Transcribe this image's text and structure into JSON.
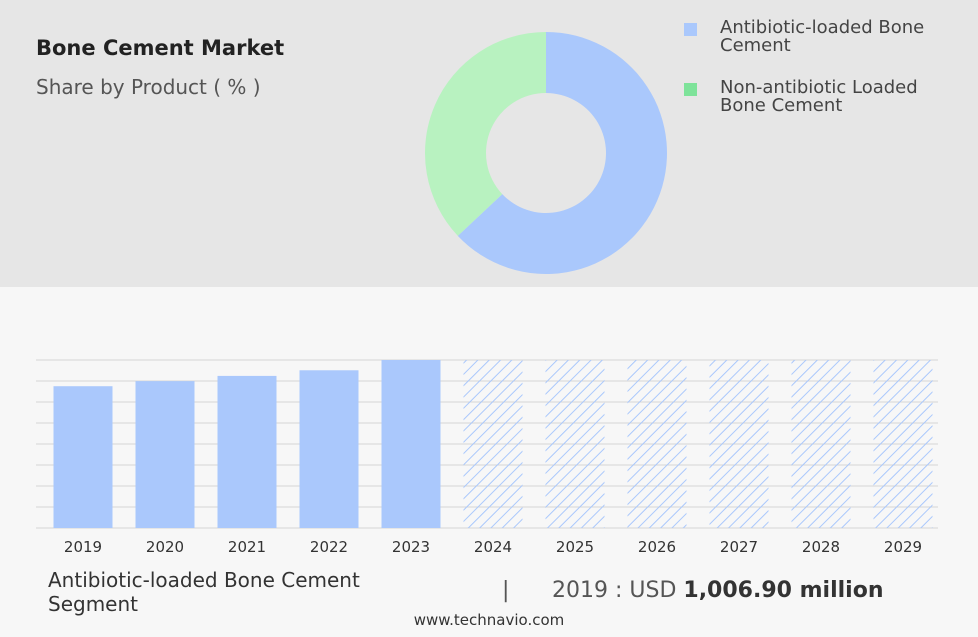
{
  "title": "Bone Cement Market",
  "subtitle": "Share by Product ( % )",
  "legend": {
    "items": [
      {
        "label": "Antibiotic-loaded Bone Cement",
        "color": "#aac8fc"
      },
      {
        "label": "Non-antibiotic Loaded Bone Cement",
        "color": "#7ee39a"
      }
    ]
  },
  "segment_label": "Antibiotic-loaded Bone Cement Segment",
  "separator": "|",
  "value_prefix": "2019 : USD ",
  "value_amount": "1,006.90 million",
  "footer": "www.technavio.com",
  "colors": {
    "donut_primary": "#aac8fc",
    "donut_secondary": "#b8f2c0",
    "bar": "#aac8fc",
    "hatch": "#aac8fc",
    "top_bg": "#e6e6e6",
    "bottom_bg": "#f7f7f7"
  },
  "chart_data": [
    {
      "type": "pie",
      "variant": "donut",
      "categories": [
        "Antibiotic-loaded Bone Cement",
        "Non-antibiotic Loaded Bone Cement"
      ],
      "values": [
        63,
        37
      ]
    },
    {
      "type": "bar",
      "categories": [
        "2019",
        "2020",
        "2021",
        "2022",
        "2023",
        "2024",
        "2025",
        "2026",
        "2027",
        "2028",
        "2029"
      ],
      "values": [
        1006.9,
        1043,
        1080,
        1120,
        1193,
        null,
        null,
        null,
        null,
        null,
        null
      ],
      "forecast_categories": [
        "2024",
        "2025",
        "2026",
        "2027",
        "2028",
        "2029"
      ],
      "ylim": [
        0,
        1193
      ],
      "grid": true
    }
  ]
}
